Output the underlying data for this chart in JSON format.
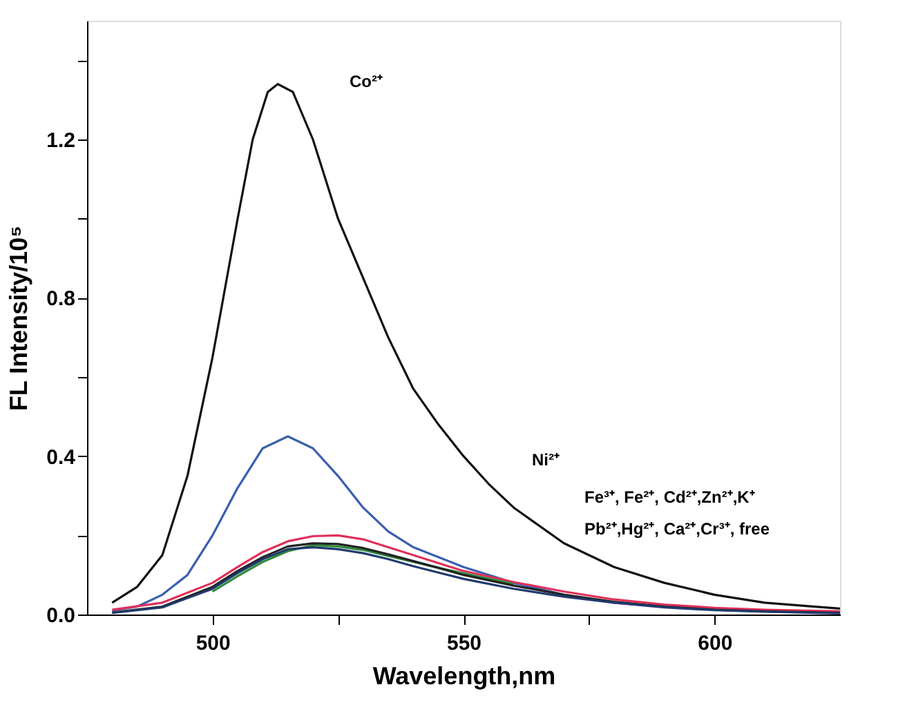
{
  "chart_data": {
    "type": "line",
    "xlabel": "Wavelength,nm",
    "ylabel": "FL Intensity/10⁵",
    "xlim": [
      475,
      625
    ],
    "ylim": [
      0,
      1.5
    ],
    "xticks": [
      500,
      {
        "value": 525,
        "label": null
      },
      550,
      {
        "value": 575,
        "label": null
      },
      600
    ],
    "yticks": [
      {
        "value": 0,
        "label": "0.0"
      },
      {
        "value": 0.2,
        "label": null
      },
      0.4,
      {
        "value": 0.6,
        "label": null
      },
      0.8,
      {
        "value": 1.0,
        "label": null
      },
      1.2,
      {
        "value": 1.4,
        "label": null
      }
    ],
    "grid": false,
    "legend": false,
    "line_style": "solid",
    "marker": "none",
    "series": [
      {
        "color": "#111111",
        "x": [
          480,
          485,
          490,
          495,
          500,
          505,
          508,
          511,
          513,
          516,
          520,
          525,
          530,
          535,
          540,
          545,
          550,
          555,
          560,
          570,
          580,
          590,
          600,
          610,
          620,
          625
        ],
        "values": [
          0.03,
          0.07,
          0.15,
          0.35,
          0.65,
          1.0,
          1.2,
          1.32,
          1.34,
          1.32,
          1.2,
          1.0,
          0.85,
          0.7,
          0.57,
          0.48,
          0.4,
          0.33,
          0.27,
          0.18,
          0.12,
          0.08,
          0.05,
          0.03,
          0.02,
          0.015
        ]
      },
      {
        "color": "#3a5fb0",
        "x": [
          480,
          485,
          490,
          495,
          500,
          505,
          510,
          515,
          520,
          525,
          530,
          535,
          540,
          550,
          560,
          570,
          580,
          590,
          600,
          610,
          625
        ],
        "values": [
          0.01,
          0.02,
          0.05,
          0.1,
          0.2,
          0.32,
          0.42,
          0.45,
          0.42,
          0.35,
          0.27,
          0.21,
          0.17,
          0.12,
          0.08,
          0.05,
          0.03,
          0.02,
          0.015,
          0.01,
          0.005
        ]
      },
      {
        "color": "#e0305a",
        "x": [
          480,
          490,
          500,
          505,
          510,
          515,
          520,
          525,
          530,
          535,
          540,
          545,
          550,
          560,
          570,
          580,
          590,
          600,
          610,
          625
        ],
        "values": [
          0.012,
          0.03,
          0.08,
          0.12,
          0.158,
          0.185,
          0.198,
          0.2,
          0.19,
          0.17,
          0.15,
          0.13,
          0.11,
          0.082,
          0.058,
          0.038,
          0.025,
          0.017,
          0.012,
          0.008
        ]
      },
      {
        "color": "#2e8b3a",
        "x": [
          500,
          505,
          510,
          515,
          520,
          525,
          530,
          535,
          540,
          545,
          550,
          560
        ],
        "values": [
          0.058,
          0.097,
          0.133,
          0.16,
          0.175,
          0.172,
          0.163,
          0.148,
          0.133,
          0.118,
          0.104,
          0.077
        ]
      },
      {
        "color": "#222222",
        "x": [
          480,
          490,
          500,
          505,
          510,
          515,
          520,
          525,
          530,
          535,
          540,
          545,
          550,
          560,
          570,
          580,
          590,
          600,
          610,
          625
        ],
        "values": [
          0.005,
          0.02,
          0.07,
          0.11,
          0.145,
          0.172,
          0.18,
          0.178,
          0.168,
          0.152,
          0.135,
          0.118,
          0.1,
          0.073,
          0.05,
          0.032,
          0.02,
          0.012,
          0.008,
          0.004
        ]
      },
      {
        "color": "#1f3a6e",
        "x": [
          480,
          490,
          500,
          505,
          510,
          515,
          520,
          525,
          530,
          535,
          540,
          545,
          550,
          560,
          570,
          580,
          590,
          600,
          610,
          625
        ],
        "values": [
          0.004,
          0.018,
          0.065,
          0.105,
          0.14,
          0.165,
          0.17,
          0.165,
          0.155,
          0.14,
          0.122,
          0.106,
          0.09,
          0.065,
          0.045,
          0.03,
          0.018,
          0.011,
          0.007,
          0.003
        ]
      }
    ],
    "annotations": [
      "Co²⁺",
      "Ni²⁺",
      "Fe³⁺, Fe²⁺, Cd²⁺,Zn²⁺,K⁺",
      "Pb²⁺,Hg²⁺, Ca²⁺,Cr³⁺, free"
    ]
  }
}
